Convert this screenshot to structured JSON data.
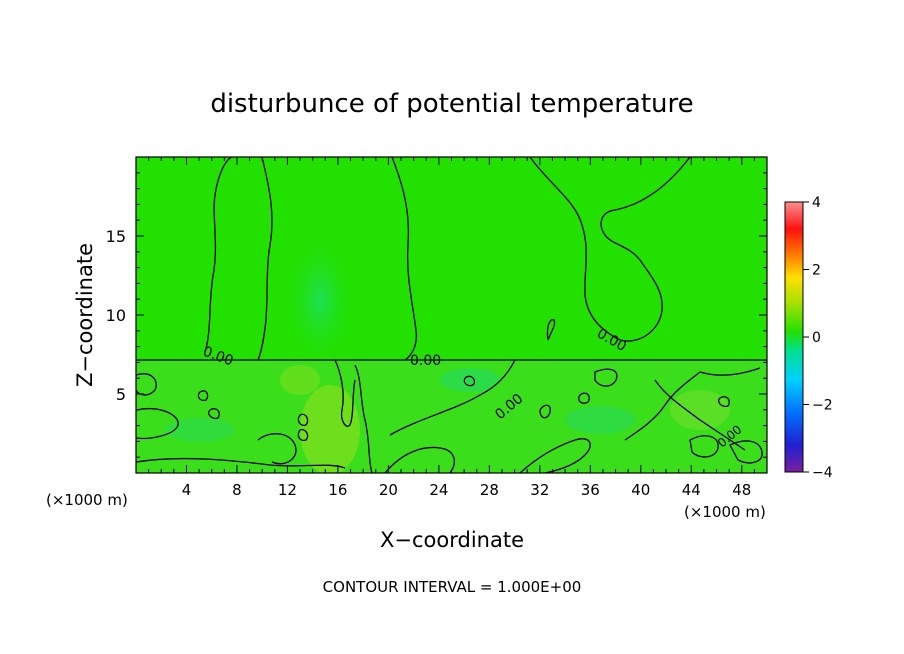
{
  "chart_data": {
    "type": "heatmap",
    "title": "disturbunce of potential temperature",
    "xlabel": "X−coordinate",
    "ylabel": "Z−coordinate",
    "x_unit": "(×1000 m)",
    "x_unit_right": "(×1000 m)",
    "xlim": [
      0,
      50
    ],
    "ylim": [
      0,
      20
    ],
    "x_ticks": [
      4,
      8,
      12,
      16,
      20,
      24,
      28,
      32,
      36,
      40,
      44,
      48
    ],
    "x_tick_labels": [
      "4",
      "8",
      "12",
      "16",
      "20",
      "24",
      "28",
      "32",
      "36",
      "40",
      "44",
      "48"
    ],
    "y_ticks": [
      5,
      10,
      15
    ],
    "y_tick_labels": [
      "5",
      "10",
      "15"
    ],
    "colorbar": {
      "range": [
        -4,
        4
      ],
      "ticks": [
        4,
        2,
        0,
        -2,
        -4
      ],
      "tick_labels": [
        "4",
        "2",
        "0",
        "−2",
        "−4"
      ],
      "colors": [
        "#7a1fa0",
        "#2020d0",
        "#0070ff",
        "#00d0ff",
        "#00e090",
        "#22e000",
        "#a0e000",
        "#ffe000",
        "#ff8000",
        "#ff1010",
        "#ff9090"
      ]
    },
    "contour_labels": [
      "0.00",
      "0.00",
      "0.00",
      "0.00",
      "0.00"
    ],
    "footer": "CONTOUR INTERVAL = 1.000E+00",
    "background_color": "#22e000"
  }
}
